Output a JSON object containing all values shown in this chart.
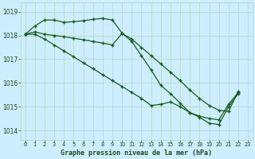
{
  "title": "Graphe pression niveau de la mer (hPa)",
  "bg_color": "#cceeff",
  "grid_color": "#b0d8c8",
  "line_color": "#1a5c1a",
  "xlim": [
    -0.5,
    23.5
  ],
  "ylim": [
    1013.6,
    1019.4
  ],
  "yticks": [
    1014,
    1015,
    1016,
    1017,
    1018,
    1019
  ],
  "xticks": [
    0,
    1,
    2,
    3,
    4,
    5,
    6,
    7,
    8,
    9,
    10,
    11,
    12,
    13,
    14,
    15,
    16,
    17,
    18,
    19,
    20,
    21,
    22,
    23
  ],
  "line1_y": [
    1018.05,
    1018.4,
    1018.65,
    1018.65,
    1018.55,
    1018.58,
    1018.62,
    1018.68,
    1018.72,
    1018.65,
    1018.1,
    1017.75,
    1017.15,
    1016.55,
    1015.9,
    1015.55,
    1015.15,
    1014.75,
    1014.55,
    1014.3,
    1014.25,
    1015.0,
    1015.55,
    null
  ],
  "line2_y": [
    1018.05,
    1018.15,
    1018.05,
    1018.0,
    1017.95,
    1017.88,
    1017.82,
    1017.75,
    1017.68,
    1017.6,
    1018.08,
    1017.85,
    1017.5,
    1017.15,
    1016.8,
    1016.45,
    1016.1,
    1015.7,
    1015.35,
    1015.05,
    1014.85,
    1014.8,
    1015.65,
    null
  ],
  "line3_y": [
    1018.05,
    1018.05,
    1017.85,
    1017.6,
    1017.35,
    1017.1,
    1016.85,
    1016.6,
    1016.35,
    1016.1,
    1015.85,
    1015.6,
    1015.35,
    1015.05,
    1015.1,
    1015.2,
    1015.0,
    1014.75,
    1014.6,
    1014.5,
    1014.45,
    1015.1,
    1015.6,
    null
  ]
}
